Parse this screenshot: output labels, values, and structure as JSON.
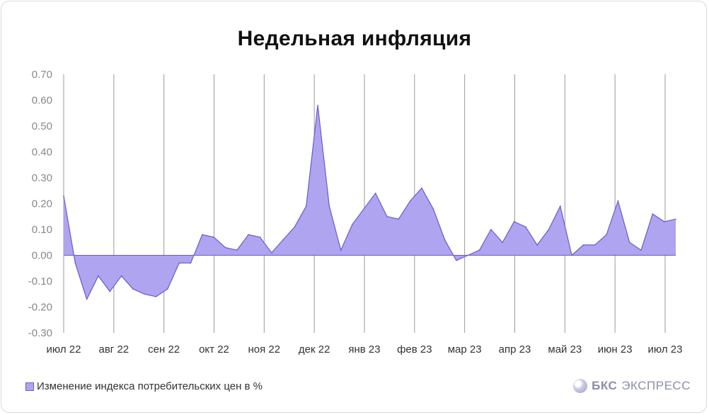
{
  "chart_data": {
    "type": "area",
    "title": "Недельная инфляция",
    "ylim": [
      -0.3,
      0.7
    ],
    "yticks": [
      "0.70",
      "0.60",
      "0.50",
      "0.40",
      "0.30",
      "0.20",
      "0.10",
      "0.00",
      "-0.10",
      "-0.20",
      "-0.30"
    ],
    "xticks": [
      "июл 22",
      "авг 22",
      "сен 22",
      "окт 22",
      "ноя 22",
      "дек 22",
      "янв 23",
      "фев 23",
      "мар 23",
      "апр 23",
      "май 23",
      "июн 23",
      "июл 23"
    ],
    "grid": "vertical",
    "legend_position": "bottom-left",
    "color": "#afa4f0",
    "line_color": "#6a5acd",
    "series": [
      {
        "name": "Изменение индекса потребительских цен в %",
        "values": [
          0.23,
          -0.03,
          -0.17,
          -0.08,
          -0.14,
          -0.08,
          -0.13,
          -0.15,
          -0.16,
          -0.13,
          -0.03,
          -0.03,
          0.08,
          0.07,
          0.03,
          0.02,
          0.08,
          0.07,
          0.01,
          0.06,
          0.11,
          0.19,
          0.58,
          0.19,
          0.02,
          0.12,
          0.18,
          0.24,
          0.15,
          0.14,
          0.21,
          0.26,
          0.18,
          0.06,
          -0.02,
          0.0,
          0.02,
          0.1,
          0.05,
          0.13,
          0.11,
          0.04,
          0.1,
          0.19,
          0.0,
          0.04,
          0.04,
          0.08,
          0.21,
          0.05,
          0.02,
          0.16,
          0.13,
          0.14
        ]
      }
    ]
  },
  "legend": {
    "label": "Изменение индекса потребительских цен в %"
  },
  "brand": {
    "part1": "БКС",
    "part2": "ЭКСПРЕСС"
  }
}
